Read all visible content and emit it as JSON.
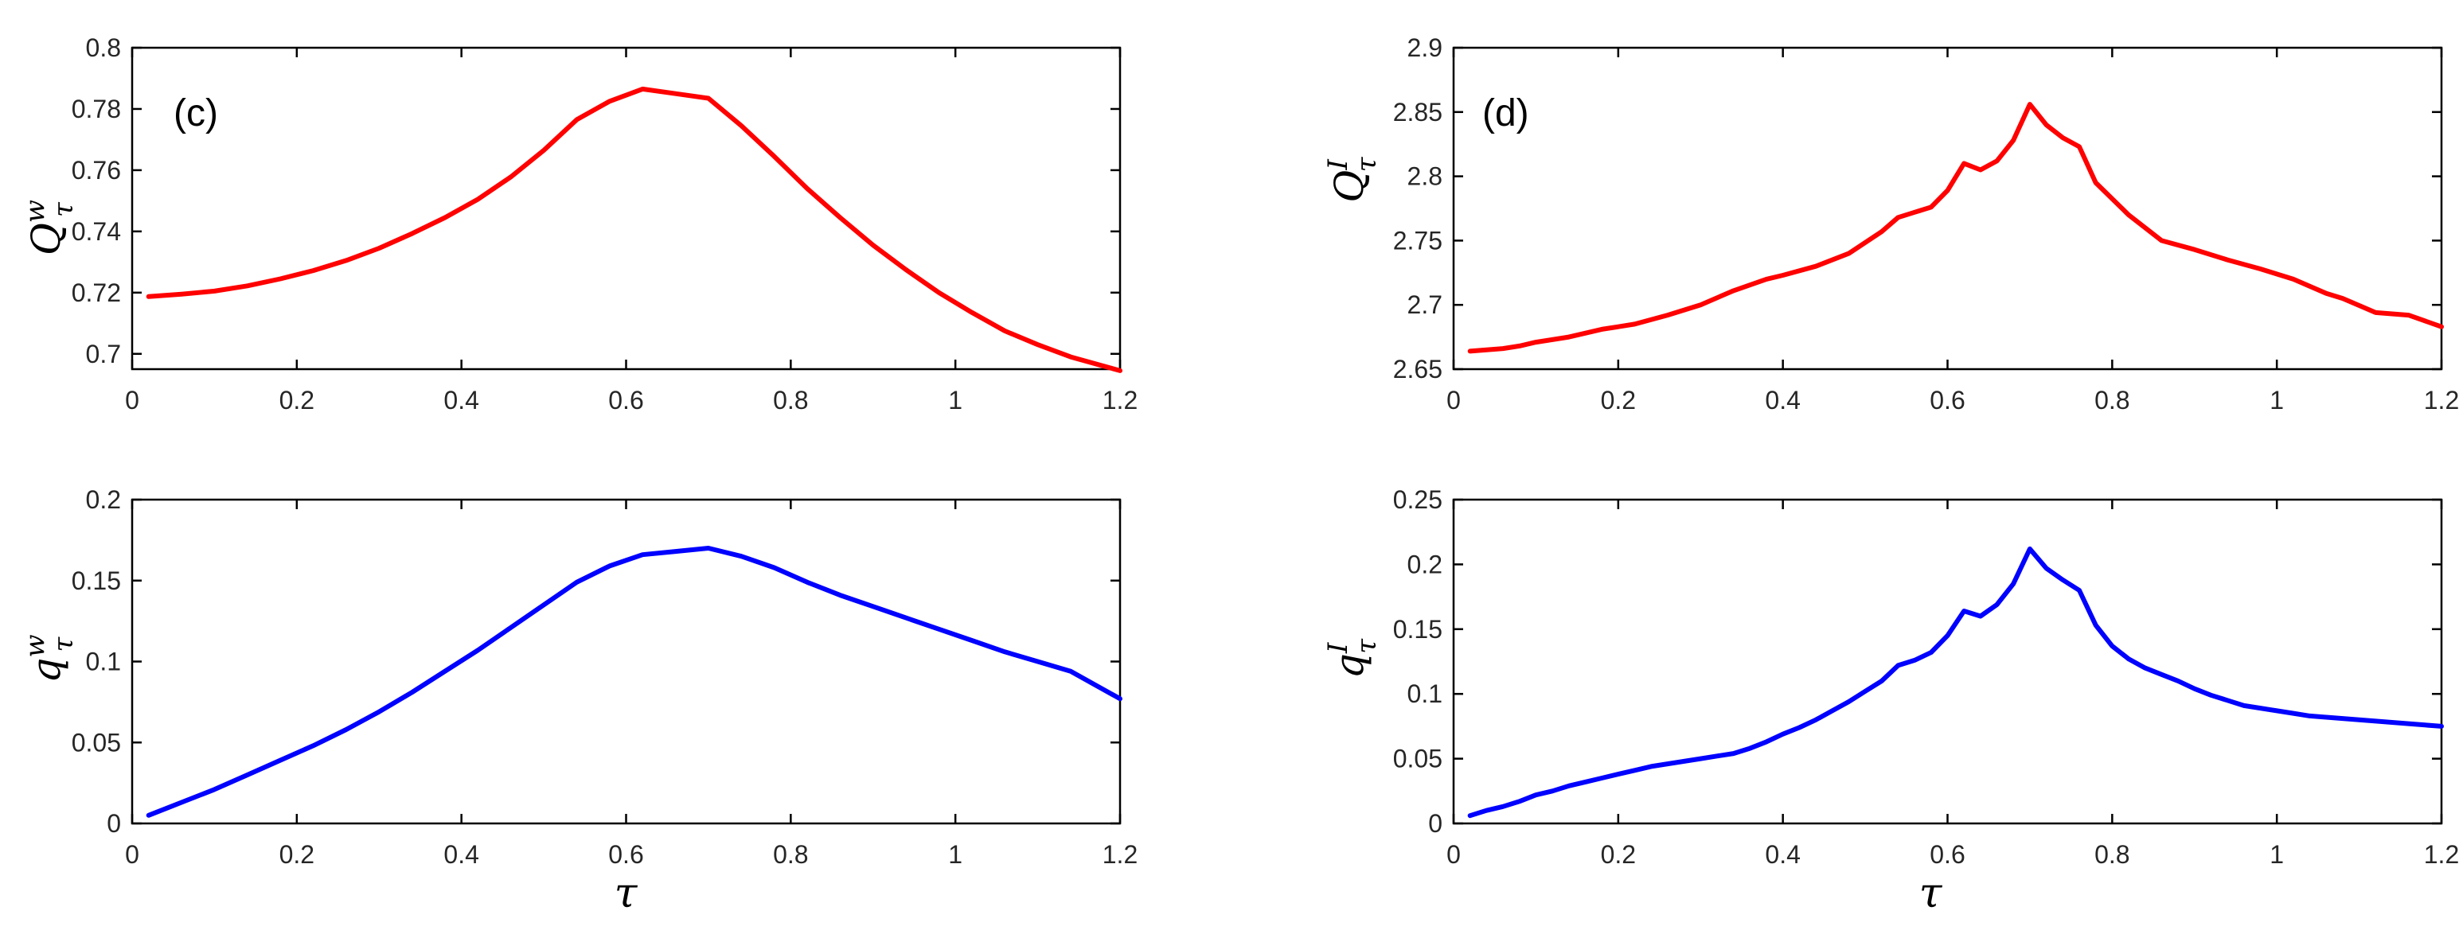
{
  "colors": {
    "red": "#ff0000",
    "blue": "#0000ff"
  },
  "chart_data": [
    {
      "type": "line",
      "panel_label": "(c)",
      "ylabel": {
        "base": "Q",
        "sup": "w",
        "sub": "τ"
      },
      "xlabel": "",
      "xlim": [
        0,
        1.2
      ],
      "ylim": [
        0.695,
        0.8
      ],
      "xticks": [
        "0",
        "0.2",
        "0.4",
        "0.6",
        "0.8",
        "1",
        "1.2"
      ],
      "yticks": [
        "0.7",
        "0.72",
        "0.74",
        "0.76",
        "0.78",
        "0.8"
      ],
      "series": [
        {
          "name": "Q_tau^w",
          "color": "#ff0000",
          "x": [
            0.02,
            0.06,
            0.1,
            0.14,
            0.18,
            0.22,
            0.26,
            0.3,
            0.34,
            0.38,
            0.42,
            0.46,
            0.5,
            0.54,
            0.58,
            0.62,
            0.66,
            0.7,
            0.74,
            0.78,
            0.82,
            0.86,
            0.9,
            0.94,
            0.98,
            1.02,
            1.06,
            1.1,
            1.14,
            1.2
          ],
          "y": [
            0.7187,
            0.7195,
            0.7205,
            0.7222,
            0.7245,
            0.7272,
            0.7305,
            0.7345,
            0.7393,
            0.7445,
            0.7505,
            0.7578,
            0.7665,
            0.7765,
            0.7825,
            0.7865,
            0.785,
            0.7835,
            0.7745,
            0.7645,
            0.754,
            0.7445,
            0.7355,
            0.7275,
            0.72,
            0.7135,
            0.7075,
            0.703,
            0.699,
            0.6945
          ]
        }
      ]
    },
    {
      "type": "line",
      "panel_label": "(d)",
      "ylabel": {
        "base": "Q",
        "sup": "I",
        "sub": "τ"
      },
      "xlabel": "",
      "xlim": [
        0,
        1.2
      ],
      "ylim": [
        2.65,
        2.9
      ],
      "xticks": [
        "0",
        "0.2",
        "0.4",
        "0.6",
        "0.8",
        "1",
        "1.2"
      ],
      "yticks": [
        "2.65",
        "2.7",
        "2.75",
        "2.8",
        "2.85",
        "2.9"
      ],
      "series": [
        {
          "name": "Q_tau^I",
          "color": "#ff0000",
          "x": [
            0.02,
            0.06,
            0.08,
            0.1,
            0.14,
            0.18,
            0.2,
            0.22,
            0.26,
            0.3,
            0.34,
            0.38,
            0.4,
            0.44,
            0.48,
            0.52,
            0.54,
            0.56,
            0.58,
            0.6,
            0.62,
            0.64,
            0.66,
            0.68,
            0.7,
            0.72,
            0.74,
            0.76,
            0.78,
            0.82,
            0.86,
            0.9,
            0.94,
            0.98,
            1.02,
            1.06,
            1.08,
            1.12,
            1.16,
            1.2
          ],
          "y": [
            2.664,
            2.666,
            2.668,
            2.671,
            2.675,
            2.681,
            2.683,
            2.685,
            2.692,
            2.7,
            2.711,
            2.72,
            2.723,
            2.73,
            2.74,
            2.757,
            2.768,
            2.772,
            2.776,
            2.789,
            2.81,
            2.805,
            2.812,
            2.828,
            2.856,
            2.84,
            2.83,
            2.823,
            2.795,
            2.77,
            2.75,
            2.743,
            2.735,
            2.728,
            2.72,
            2.709,
            2.705,
            2.694,
            2.692,
            2.683
          ]
        }
      ]
    },
    {
      "type": "line",
      "panel_label": "",
      "ylabel": {
        "base": "q",
        "sup": "w",
        "sub": "τ"
      },
      "xlabel": "τ",
      "xlim": [
        0,
        1.2
      ],
      "ylim": [
        0,
        0.2
      ],
      "xticks": [
        "0",
        "0.2",
        "0.4",
        "0.6",
        "0.8",
        "1",
        "1.2"
      ],
      "yticks": [
        "0",
        "0.05",
        "0.1",
        "0.15",
        "0.2"
      ],
      "series": [
        {
          "name": "q_tau^w",
          "color": "#0000ff",
          "x": [
            0.02,
            0.06,
            0.1,
            0.14,
            0.18,
            0.22,
            0.26,
            0.3,
            0.34,
            0.38,
            0.42,
            0.46,
            0.5,
            0.54,
            0.58,
            0.62,
            0.66,
            0.7,
            0.74,
            0.78,
            0.82,
            0.86,
            0.9,
            0.94,
            0.98,
            1.02,
            1.06,
            1.1,
            1.14,
            1.2
          ],
          "y": [
            0.005,
            0.013,
            0.021,
            0.03,
            0.039,
            0.048,
            0.058,
            0.069,
            0.081,
            0.094,
            0.107,
            0.121,
            0.135,
            0.149,
            0.159,
            0.166,
            0.168,
            0.17,
            0.165,
            0.158,
            0.149,
            0.141,
            0.134,
            0.127,
            0.12,
            0.113,
            0.106,
            0.1,
            0.094,
            0.077
          ]
        }
      ]
    },
    {
      "type": "line",
      "panel_label": "",
      "ylabel": {
        "base": "q",
        "sup": "I",
        "sub": "τ"
      },
      "xlabel": "τ",
      "xlim": [
        0,
        1.2
      ],
      "ylim": [
        0,
        0.25
      ],
      "xticks": [
        "0",
        "0.2",
        "0.4",
        "0.6",
        "0.8",
        "1",
        "1.2"
      ],
      "yticks": [
        "0",
        "0.05",
        "0.1",
        "0.15",
        "0.2",
        "0.25"
      ],
      "series": [
        {
          "name": "q_tau^I",
          "color": "#0000ff",
          "x": [
            0.02,
            0.04,
            0.06,
            0.08,
            0.1,
            0.12,
            0.14,
            0.16,
            0.18,
            0.2,
            0.22,
            0.24,
            0.26,
            0.28,
            0.3,
            0.32,
            0.34,
            0.36,
            0.38,
            0.4,
            0.42,
            0.44,
            0.46,
            0.48,
            0.5,
            0.52,
            0.54,
            0.56,
            0.58,
            0.6,
            0.62,
            0.64,
            0.66,
            0.68,
            0.7,
            0.72,
            0.74,
            0.76,
            0.78,
            0.8,
            0.82,
            0.84,
            0.86,
            0.88,
            0.9,
            0.92,
            0.94,
            0.96,
            0.98,
            1.0,
            1.02,
            1.04,
            1.06,
            1.08,
            1.1,
            1.12,
            1.14,
            1.16,
            1.18,
            1.2
          ],
          "y": [
            0.006,
            0.01,
            0.013,
            0.017,
            0.022,
            0.025,
            0.029,
            0.032,
            0.035,
            0.038,
            0.041,
            0.044,
            0.046,
            0.048,
            0.05,
            0.052,
            0.054,
            0.058,
            0.063,
            0.069,
            0.074,
            0.08,
            0.087,
            0.094,
            0.102,
            0.11,
            0.122,
            0.126,
            0.132,
            0.145,
            0.164,
            0.16,
            0.169,
            0.185,
            0.212,
            0.197,
            0.188,
            0.18,
            0.153,
            0.137,
            0.127,
            0.12,
            0.115,
            0.11,
            0.104,
            0.099,
            0.095,
            0.091,
            0.089,
            0.087,
            0.085,
            0.083,
            0.082,
            0.081,
            0.08,
            0.079,
            0.078,
            0.077,
            0.076,
            0.075
          ]
        }
      ]
    }
  ]
}
